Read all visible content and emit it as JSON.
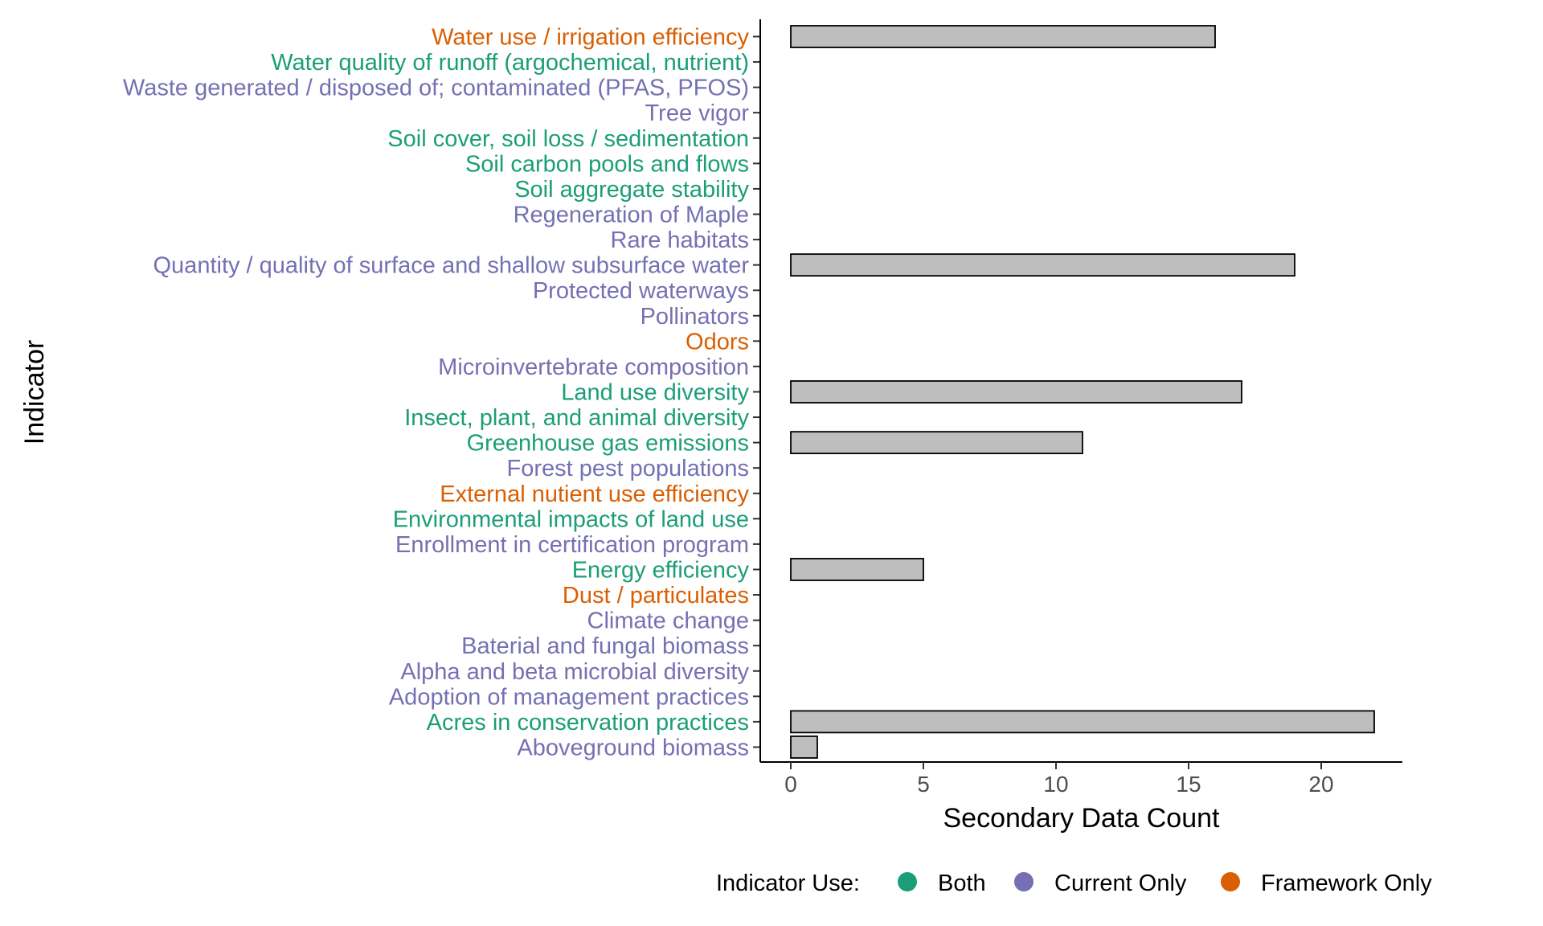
{
  "chart_data": {
    "type": "bar",
    "orientation": "horizontal",
    "xlabel": "Secondary Data Count",
    "ylabel": "Indicator",
    "xlim": [
      -1.1,
      23
    ],
    "xticks": [
      0,
      5,
      10,
      15,
      20
    ],
    "grid": false,
    "bar_fill": "#bebebe",
    "bar_stroke": "#000000",
    "categories": [
      {
        "label": "Water use / irrigation efficiency",
        "value": 16,
        "use": "Framework Only"
      },
      {
        "label": "Water quality of runoff (argochemical, nutrient)",
        "value": 0,
        "use": "Both"
      },
      {
        "label": "Waste generated / disposed of; contaminated (PFAS, PFOS)",
        "value": 0,
        "use": "Current Only"
      },
      {
        "label": "Tree vigor",
        "value": 0,
        "use": "Current Only"
      },
      {
        "label": "Soil cover, soil loss / sedimentation",
        "value": 0,
        "use": "Both"
      },
      {
        "label": "Soil carbon pools and flows",
        "value": 0,
        "use": "Both"
      },
      {
        "label": "Soil aggregate stability",
        "value": 0,
        "use": "Both"
      },
      {
        "label": "Regeneration of Maple",
        "value": 0,
        "use": "Current Only"
      },
      {
        "label": "Rare habitats",
        "value": 0,
        "use": "Current Only"
      },
      {
        "label": "Quantity / quality of surface and shallow subsurface water",
        "value": 19,
        "use": "Current Only"
      },
      {
        "label": "Protected waterways",
        "value": 0,
        "use": "Current Only"
      },
      {
        "label": "Pollinators",
        "value": 0,
        "use": "Current Only"
      },
      {
        "label": "Odors",
        "value": 0,
        "use": "Framework Only"
      },
      {
        "label": "Microinvertebrate composition",
        "value": 0,
        "use": "Current Only"
      },
      {
        "label": "Land use diversity",
        "value": 17,
        "use": "Both"
      },
      {
        "label": "Insect, plant, and animal diversity",
        "value": 0,
        "use": "Both"
      },
      {
        "label": "Greenhouse gas emissions",
        "value": 11,
        "use": "Both"
      },
      {
        "label": "Forest pest populations",
        "value": 0,
        "use": "Current Only"
      },
      {
        "label": "External nutient use efficiency",
        "value": 0,
        "use": "Framework Only"
      },
      {
        "label": "Environmental impacts of land use",
        "value": 0,
        "use": "Both"
      },
      {
        "label": "Enrollment in certification program",
        "value": 0,
        "use": "Current Only"
      },
      {
        "label": "Energy efficiency",
        "value": 5,
        "use": "Both"
      },
      {
        "label": "Dust / particulates",
        "value": 0,
        "use": "Framework Only"
      },
      {
        "label": "Climate change",
        "value": 0,
        "use": "Current Only"
      },
      {
        "label": "Baterial and fungal biomass",
        "value": 0,
        "use": "Current Only"
      },
      {
        "label": "Alpha and beta microbial diversity",
        "value": 0,
        "use": "Current Only"
      },
      {
        "label": "Adoption of management practices",
        "value": 0,
        "use": "Current Only"
      },
      {
        "label": "Acres in conservation practices",
        "value": 22,
        "use": "Both"
      },
      {
        "label": "Aboveground biomass",
        "value": 1,
        "use": "Current Only"
      }
    ],
    "legend": {
      "title": "Indicator Use:",
      "position": "bottom",
      "items": [
        {
          "label": "Both",
          "color": "#1b9e77"
        },
        {
          "label": "Current Only",
          "color": "#7570b3"
        },
        {
          "label": "Framework Only",
          "color": "#d95f02"
        }
      ]
    }
  }
}
